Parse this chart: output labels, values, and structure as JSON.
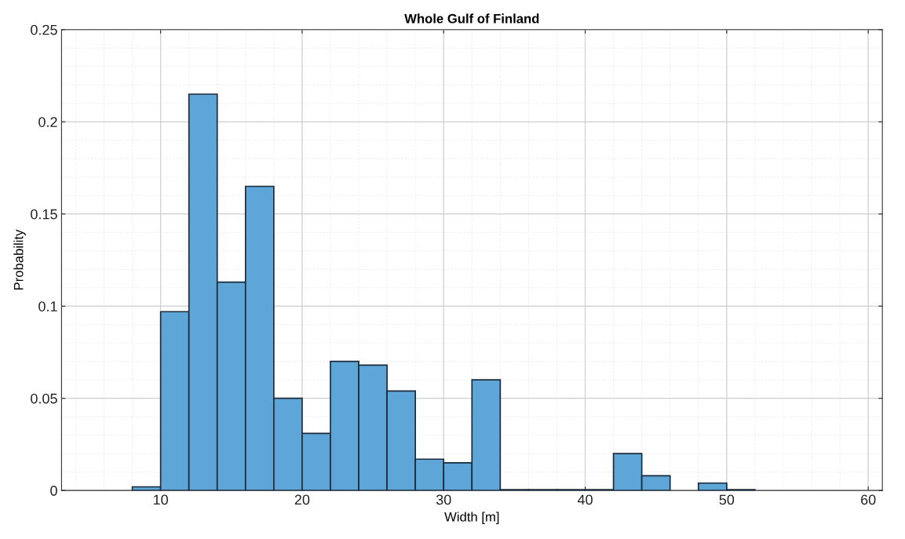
{
  "chart_data": {
    "type": "histogram",
    "title": "Whole Gulf of Finland",
    "xlabel": "Width [m]",
    "ylabel": "Probability",
    "bins": [
      8,
      10,
      12,
      14,
      16,
      18,
      20,
      22,
      24,
      26,
      28,
      30,
      32,
      34,
      36,
      38,
      40,
      42,
      44,
      46,
      48,
      50,
      52
    ],
    "values": [
      0.002,
      0.097,
      0.215,
      0.113,
      0.165,
      0.05,
      0.031,
      0.07,
      0.068,
      0.054,
      0.017,
      0.015,
      0.06,
      0.0005,
      0.0005,
      0.0005,
      0.0005,
      0.02,
      0.008,
      0,
      0.004,
      0.0005
    ],
    "color": "#5ea6d8",
    "xlim": [
      3,
      61
    ],
    "xticks": [
      10,
      20,
      30,
      40,
      50,
      60
    ],
    "ylim": [
      0,
      0.25
    ],
    "yticks": [
      0,
      0.05,
      0.1,
      0.15,
      0.2,
      0.25
    ],
    "grid": true
  }
}
